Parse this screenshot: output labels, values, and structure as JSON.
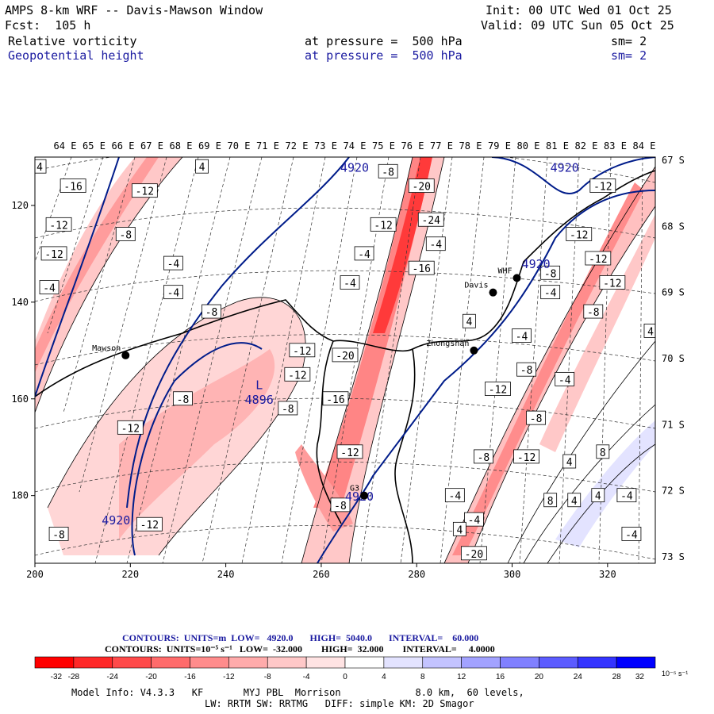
{
  "header": {
    "title": "AMPS 8-km WRF -- Davis-Mawson Window",
    "init": "Init: 00 UTC Wed 01 Oct 25",
    "fcst": "Fcst:  105 h",
    "valid": "Valid: 09 UTC Sun 05 Oct 25",
    "field1": "Relative vorticity",
    "field1_level": "at pressure =  500 hPa",
    "field1_sm": "sm= 2",
    "field2": "Geopotential height",
    "field2_level": "at pressure =  500 hPa",
    "field2_sm": "sm= 2"
  },
  "chart_data": {
    "type": "heatmap",
    "x_ticks": [
      "200",
      "220",
      "240",
      "260",
      "280",
      "300",
      "320"
    ],
    "y_ticks": [
      "120",
      "140",
      "160",
      "180"
    ],
    "lon_labels": [
      "64 E",
      "65 E",
      "66 E",
      "67 E",
      "68 E",
      "69 E",
      "70 E",
      "71 E",
      "72 E",
      "73 E",
      "74 E",
      "75 E",
      "76 E",
      "77 E",
      "78 E",
      "79 E",
      "80 E",
      "81 E",
      "82 E",
      "83 E",
      "84 E"
    ],
    "lat_labels": [
      "67 S",
      "68 S",
      "69 S",
      "70 S",
      "71 S",
      "72 S",
      "73 S"
    ],
    "places": [
      {
        "name": "Mawson",
        "x": 219,
        "y": 151
      },
      {
        "name": "Davis",
        "x": 296,
        "y": 138
      },
      {
        "name": "Zhongshan",
        "x": 292,
        "y": 150
      },
      {
        "name": "WHF",
        "x": 301,
        "y": 135
      },
      {
        "name": "G3",
        "x": 269,
        "y": 180
      }
    ],
    "height_labels": [
      {
        "text": "4920",
        "x": 267,
        "y": 113
      },
      {
        "text": "4920",
        "x": 311,
        "y": 113
      },
      {
        "text": "4920",
        "x": 305,
        "y": 133
      },
      {
        "text": "4920",
        "x": 268,
        "y": 181
      },
      {
        "text": "4920",
        "x": 217,
        "y": 186
      },
      {
        "text": "L",
        "x": 247,
        "y": 158
      },
      {
        "text": "4896",
        "x": 247,
        "y": 161
      }
    ],
    "vort_labels": [
      {
        "text": "4",
        "x": 201,
        "y": 112
      },
      {
        "text": "-16",
        "x": 208,
        "y": 116
      },
      {
        "text": "-12",
        "x": 223,
        "y": 117
      },
      {
        "text": "4",
        "x": 235,
        "y": 112
      },
      {
        "text": "-8",
        "x": 274,
        "y": 113
      },
      {
        "text": "-20",
        "x": 281,
        "y": 116
      },
      {
        "text": "-12",
        "x": 319,
        "y": 116
      },
      {
        "text": "-12",
        "x": 205,
        "y": 124
      },
      {
        "text": "-8",
        "x": 219,
        "y": 126
      },
      {
        "text": "-12",
        "x": 273,
        "y": 124
      },
      {
        "text": "-24",
        "x": 283,
        "y": 123
      },
      {
        "text": "-12",
        "x": 204,
        "y": 130
      },
      {
        "text": "-4",
        "x": 284,
        "y": 128
      },
      {
        "text": "-4",
        "x": 229,
        "y": 132
      },
      {
        "text": "-4",
        "x": 269,
        "y": 130
      },
      {
        "text": "-16",
        "x": 281,
        "y": 133
      },
      {
        "text": "-12",
        "x": 318,
        "y": 131
      },
      {
        "text": "-12",
        "x": 314,
        "y": 126
      },
      {
        "text": "-4",
        "x": 203,
        "y": 137
      },
      {
        "text": "-4",
        "x": 229,
        "y": 138
      },
      {
        "text": "-4",
        "x": 266,
        "y": 136
      },
      {
        "text": "-8",
        "x": 308,
        "y": 134
      },
      {
        "text": "-12",
        "x": 321,
        "y": 136
      },
      {
        "text": "-8",
        "x": 237,
        "y": 142
      },
      {
        "text": "-4",
        "x": 308,
        "y": 138
      },
      {
        "text": "-8",
        "x": 317,
        "y": 142
      },
      {
        "text": "4",
        "x": 291,
        "y": 144
      },
      {
        "text": "4",
        "x": 329,
        "y": 146
      },
      {
        "text": "-8",
        "x": 198,
        "y": 147
      },
      {
        "text": "-4",
        "x": 302,
        "y": 147
      },
      {
        "text": "-12",
        "x": 256,
        "y": 150
      },
      {
        "text": "-20",
        "x": 265,
        "y": 151
      },
      {
        "text": "-8",
        "x": 303,
        "y": 154
      },
      {
        "text": "-12",
        "x": 255,
        "y": 155
      },
      {
        "text": "-4",
        "x": 311,
        "y": 156
      },
      {
        "text": "-12",
        "x": 297,
        "y": 158
      },
      {
        "text": "-8",
        "x": 231,
        "y": 160
      },
      {
        "text": "-16",
        "x": 263,
        "y": 160
      },
      {
        "text": "-8",
        "x": 253,
        "y": 162
      },
      {
        "text": "-8",
        "x": 305,
        "y": 164
      },
      {
        "text": "-12",
        "x": 220,
        "y": 166
      },
      {
        "text": "-4",
        "x": 197,
        "y": 172
      },
      {
        "text": "-12",
        "x": 266,
        "y": 171
      },
      {
        "text": "-8",
        "x": 294,
        "y": 172
      },
      {
        "text": "-12",
        "x": 303,
        "y": 172
      },
      {
        "text": "4",
        "x": 312,
        "y": 173
      },
      {
        "text": "8",
        "x": 319,
        "y": 171
      },
      {
        "text": "-4",
        "x": 288,
        "y": 180
      },
      {
        "text": "8",
        "x": 308,
        "y": 181
      },
      {
        "text": "4",
        "x": 313,
        "y": 181
      },
      {
        "text": "4",
        "x": 318,
        "y": 180
      },
      {
        "text": "-4",
        "x": 324,
        "y": 180
      },
      {
        "text": "-12",
        "x": 224,
        "y": 186
      },
      {
        "text": "-8",
        "x": 264,
        "y": 182
      },
      {
        "text": "-4",
        "x": 292,
        "y": 185
      },
      {
        "text": "-8",
        "x": 197,
        "y": 188
      },
      {
        "text": "-8",
        "x": 205,
        "y": 188
      },
      {
        "text": "4",
        "x": 289,
        "y": 187
      },
      {
        "text": "-4",
        "x": 325,
        "y": 188
      },
      {
        "text": "-20",
        "x": 292,
        "y": 192
      }
    ],
    "vort_units": "10-5 s-1",
    "height_units": "m",
    "xlim": [
      200,
      330
    ],
    "ylim": [
      110,
      194
    ]
  },
  "legend": {
    "contour_line1": "CONTOURS:  UNITS=m  LOW=   4920.0       HIGH=  5040.0       INTERVAL=    60.000",
    "contour_line2": "CONTOURS:  UNITS=10⁻⁵ s⁻¹   LOW=  -32.000        HIGH=  32.000        INTERVAL=     4.0000",
    "colorbar_labels": [
      "-32",
      "-28",
      "-24",
      "-20",
      "-16",
      "-12",
      "-8",
      "-4",
      "0",
      "4",
      "8",
      "12",
      "16",
      "20",
      "24",
      "28",
      "32"
    ],
    "colorbar_colors": [
      "#ff0000",
      "#ff2828",
      "#ff4a4a",
      "#ff6b6b",
      "#ff8c8c",
      "#ffabab",
      "#ffc8c8",
      "#ffe3e3",
      "#ffffff",
      "#ffffff",
      "#e3e3ff",
      "#c3c3ff",
      "#a2a2ff",
      "#8080ff",
      "#5c5cff",
      "#3434ff",
      "#0000ff"
    ],
    "colorbar_units": "10⁻⁵ s⁻¹"
  },
  "footer": {
    "line1": "Model Info: V4.3.3   KF       MYJ PBL  Morrison             8.0 km,  60 levels,",
    "line2": "LW: RRTM SW: RRTMG   DIFF: simple KM: 2D Smagor"
  }
}
